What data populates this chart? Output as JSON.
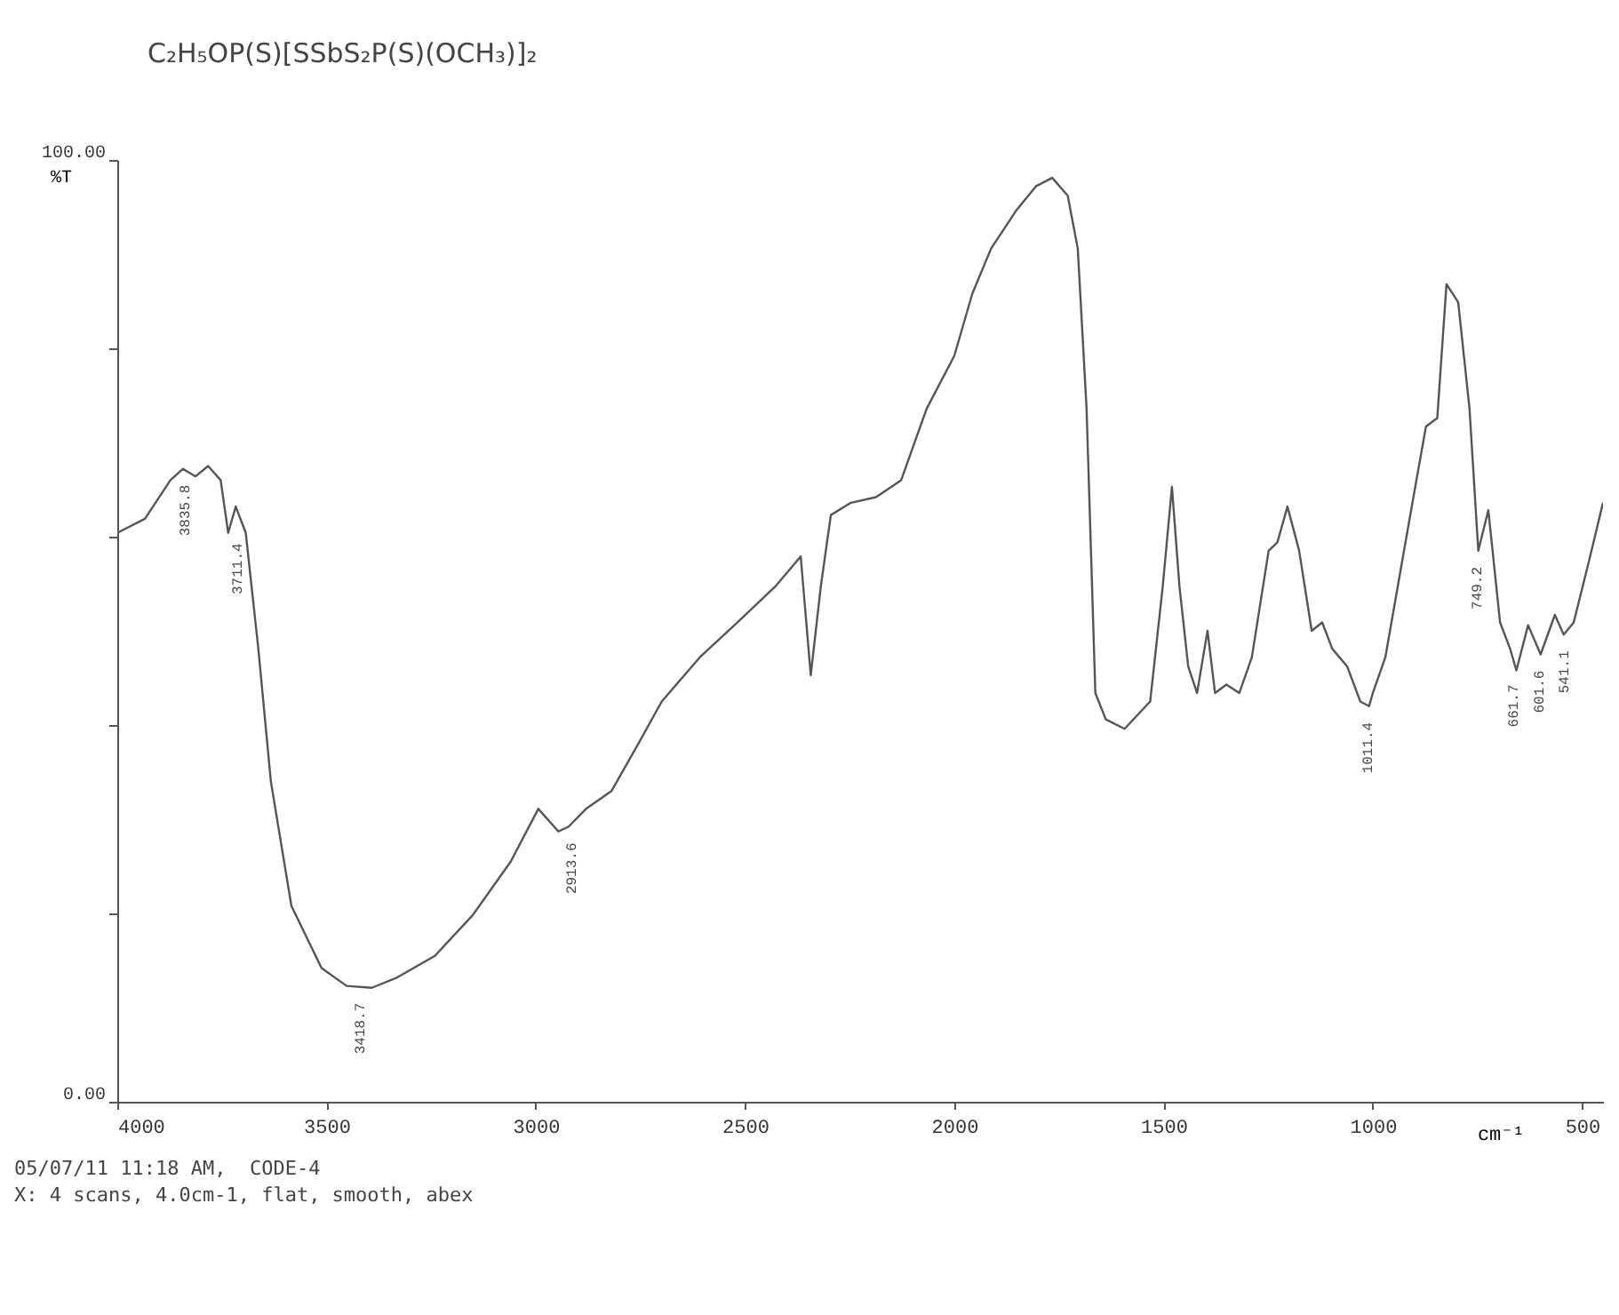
{
  "chart_data": {
    "type": "line",
    "title": "C₂H₅OP(S)[SSbS₂P(S)(OCH₃)]₂",
    "xlabel": "cm⁻¹",
    "ylabel": "%T",
    "x": [
      4000,
      3934,
      3873,
      3843,
      3813,
      3783,
      3753,
      3735,
      3717,
      3693,
      3663,
      3633,
      3584,
      3512,
      3452,
      3392,
      3331,
      3241,
      3151,
      3060,
      2994,
      2946,
      2922,
      2880,
      2819,
      2759,
      2699,
      2608,
      2518,
      2428,
      2367,
      2343,
      2319,
      2295,
      2247,
      2187,
      2127,
      2066,
      2000,
      1957,
      1912,
      1851,
      1805,
      1766,
      1729,
      1705,
      1684,
      1663,
      1638,
      1593,
      1532,
      1502,
      1480,
      1462,
      1441,
      1420,
      1395,
      1377,
      1350,
      1319,
      1289,
      1249,
      1228,
      1204,
      1176,
      1146,
      1121,
      1097,
      1061,
      1030,
      1009,
      1000,
      970,
      933,
      903,
      873,
      846,
      824,
      796,
      769,
      748,
      724,
      696,
      672,
      657,
      629,
      599,
      565,
      544,
      520,
      483,
      450
    ],
    "series": [
      {
        "color": "#555555",
        "values": [
          60.4,
          61.9,
          66.0,
          67.2,
          66.4,
          67.5,
          66.0,
          60.4,
          63.2,
          60.4,
          48.1,
          34.0,
          20.8,
          14.2,
          12.3,
          12.1,
          13.2,
          15.5,
          19.8,
          25.5,
          31.1,
          28.7,
          29.2,
          31.1,
          33.0,
          37.7,
          42.5,
          47.2,
          50.9,
          54.7,
          57.9,
          45.3,
          54.7,
          62.3,
          63.6,
          64.2,
          66.0,
          73.6,
          79.2,
          85.8,
          90.6,
          94.7,
          97.2,
          98.1,
          96.2,
          90.6,
          73.6,
          43.4,
          40.6,
          39.6,
          42.5,
          54.7,
          65.3,
          54.7,
          46.2,
          43.4,
          50.0,
          43.4,
          44.3,
          43.4,
          47.2,
          58.5,
          59.4,
          63.2,
          58.5,
          50.0,
          50.9,
          48.1,
          46.2,
          42.5,
          42.0,
          43.4,
          47.2,
          56.6,
          64.2,
          71.7,
          72.6,
          86.8,
          84.9,
          73.6,
          58.5,
          62.8,
          50.9,
          48.1,
          45.8,
          50.6,
          47.5,
          51.7,
          49.6,
          50.9,
          57.5,
          63.6
        ]
      }
    ],
    "xlim": [
      4000,
      450
    ],
    "xticks": [
      4000,
      3500,
      3000,
      2500,
      2000,
      1500,
      1000,
      500
    ],
    "ylim": [
      0,
      100
    ],
    "yticks": [
      {
        "value": 0,
        "label": "0.00"
      },
      {
        "value": 20,
        "label": null
      },
      {
        "value": 40,
        "label": null
      },
      {
        "value": 60,
        "label": null
      },
      {
        "value": 80,
        "label": null
      },
      {
        "value": 100,
        "label": "100.00"
      }
    ],
    "grid": false,
    "annotations": [
      {
        "text": "3835.8",
        "x": 3835.8,
        "y": 67.2
      },
      {
        "text": "3711.4",
        "x": 3711.4,
        "y": 61
      },
      {
        "text": "3418.7",
        "x": 3418.7,
        "y": 12.2
      },
      {
        "text": "2913.6",
        "x": 2913.6,
        "y": 29.2
      },
      {
        "text": "1011.4",
        "x": 1011.4,
        "y": 42
      },
      {
        "text": "749.2",
        "x": 749.2,
        "y": 58.5
      },
      {
        "text": "661.7",
        "x": 661.7,
        "y": 46
      },
      {
        "text": "601.6",
        "x": 601.6,
        "y": 47.5
      },
      {
        "text": "541.1",
        "x": 541.1,
        "y": 49.6
      },
      "05/07/11 11:18 AM,  CODE-4",
      "X: 4 scans, 4.0cm-1, flat, smooth, abex"
    ]
  }
}
